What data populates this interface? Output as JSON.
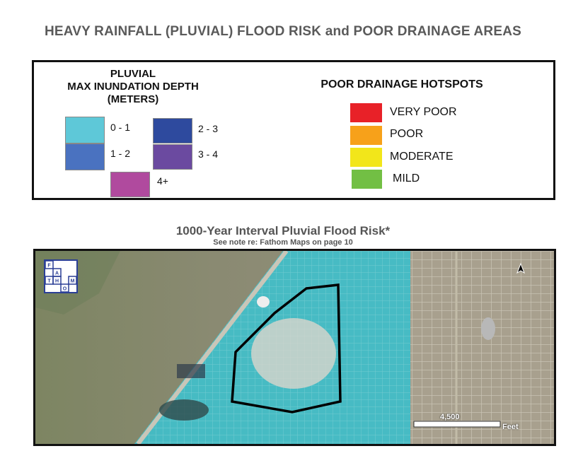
{
  "title": "HEAVY RAINFALL (PLUVIAL) FLOOD RISK and POOR DRAINAGE AREAS",
  "legend": {
    "pluvial_heading": [
      "PLUVIAL",
      "MAX INUNDATION DEPTH",
      "(METERS)"
    ],
    "depth_classes": [
      {
        "label": "0 - 1",
        "color": "#5ec8d8"
      },
      {
        "label": "1 - 2",
        "color": "#4a72c0"
      },
      {
        "label": "2 - 3",
        "color": "#2e4a9e"
      },
      {
        "label": "3 - 4",
        "color": "#6b4aa0"
      },
      {
        "label": "4+",
        "color": "#b04a9e"
      }
    ],
    "drainage_heading": "POOR DRAINAGE HOTSPOTS",
    "drainage_classes": [
      {
        "label": "VERY POOR",
        "color": "#e82128"
      },
      {
        "label": "POOR",
        "color": "#f7a11a"
      },
      {
        "label": "MODERATE",
        "color": "#f2e61a"
      },
      {
        "label": "MILD",
        "color": "#72bf44"
      }
    ]
  },
  "map": {
    "subtitle": "1000-Year Interval Pluvial Flood Risk*",
    "note": "See note re: Fathom Maps on page 10",
    "logo_letters": [
      "F",
      "A",
      "T",
      "H",
      "O",
      "M"
    ],
    "scale_value": "4,500",
    "scale_unit": "Feet"
  }
}
